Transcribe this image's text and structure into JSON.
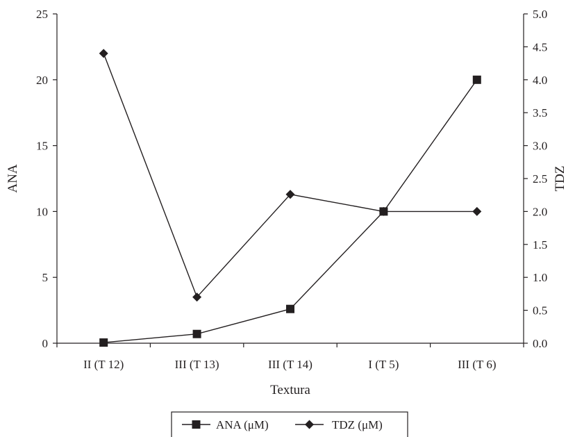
{
  "chart_data": {
    "type": "line",
    "categories": [
      "II (T 12)",
      "III (T 13)",
      "III (T 14)",
      "I (T 5)",
      "III (T 6)"
    ],
    "xlabel": "Textura",
    "ylabel_left": "ANA",
    "ylabel_right": "TDZ",
    "ylim_left": [
      0,
      25
    ],
    "ylim_right": [
      0,
      5.0
    ],
    "yticks_left": [
      "0",
      "5",
      "10",
      "15",
      "20",
      "25"
    ],
    "yticks_right": [
      "0.0",
      "0.5",
      "1.0",
      "1.5",
      "2.0",
      "2.5",
      "3.0",
      "3.5",
      "4.0",
      "4.5",
      "5.0"
    ],
    "grid": false,
    "legend_position": "bottom",
    "series": [
      {
        "name": "ANA (μM)",
        "axis": "left",
        "marker": "square",
        "values": [
          0.05,
          0.7,
          2.6,
          10.0,
          20.0
        ]
      },
      {
        "name": "TDZ (μM)",
        "axis": "right",
        "marker": "diamond",
        "values": [
          4.4,
          0.7,
          2.26,
          2.0,
          2.0
        ]
      }
    ]
  }
}
